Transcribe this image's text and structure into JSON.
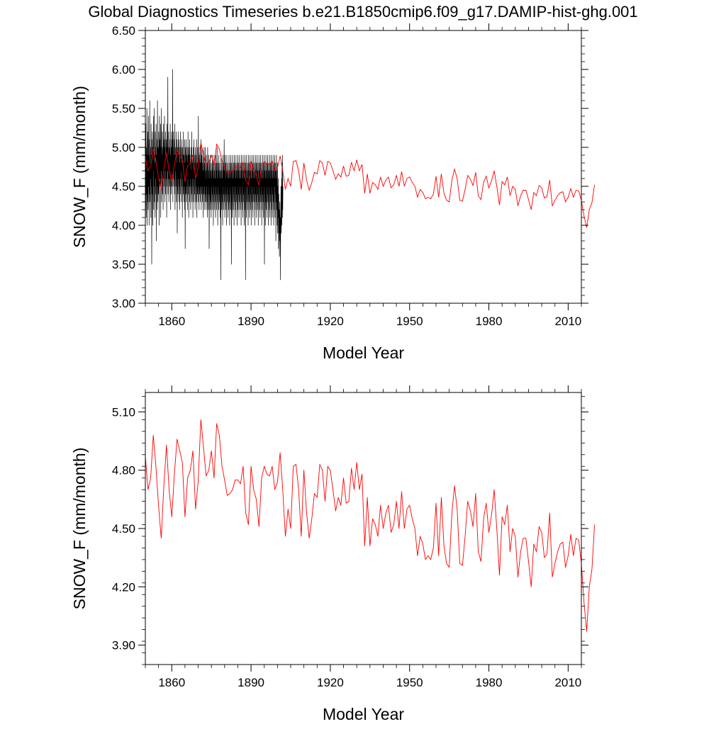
{
  "title": "Global Diagnostics Timeseries b.e21.B1850cmip6.f09_g17.DAMIP-hist-ghg.001",
  "colors": {
    "monthly": "#000000",
    "annual": "#ff0000",
    "frame": "#000000"
  },
  "chart_data": [
    {
      "type": "line",
      "xlabel": "Model Year",
      "ylabel": "SNOW_F (mm/month)",
      "xlim": [
        1850,
        2015
      ],
      "ylim": [
        3.0,
        6.5
      ],
      "xticks": [
        1860,
        1890,
        1920,
        1950,
        1980,
        2010
      ],
      "xtick_labels": [
        "1860",
        "1890",
        "1920",
        "1950",
        "1980",
        "2010"
      ],
      "yticks": [
        3.0,
        3.5,
        4.0,
        4.5,
        5.0,
        5.5,
        6.0,
        6.5
      ],
      "ytick_labels": [
        "3.00",
        "3.50",
        "4.00",
        "4.50",
        "5.00",
        "5.50",
        "6.00",
        "6.50"
      ],
      "grid": false,
      "series": [
        {
          "color": "#000000",
          "x_start": 1850.0,
          "x_step": 0.0833,
          "note_style": "monthly",
          "values": [
            4.6,
            4.2,
            5.3,
            4.8,
            4.1,
            5.0,
            4.4,
            5.5,
            4.0,
            4.9,
            4.3,
            5.2,
            4.7,
            4.2,
            5.4,
            4.5,
            4.9,
            4.0,
            5.1,
            4.4,
            5.6,
            4.3,
            4.8,
            4.6,
            5.0,
            4.1,
            5.3,
            4.5,
            4.9,
            3.5,
            5.1,
            4.4,
            5.2,
            4.6,
            4.0,
            5.0,
            4.7,
            5.4,
            4.2,
            4.9,
            4.5,
            5.5,
            4.3,
            4.8,
            4.1,
            5.2,
            4.6,
            5.0,
            4.4,
            5.3,
            3.8,
            4.9,
            4.5,
            5.1,
            4.2,
            5.6,
            4.7,
            4.3,
            5.0,
            4.8,
            4.4,
            5.2,
            4.9,
            4.0,
            5.4,
            4.6,
            5.1,
            4.5,
            4.9,
            5.3,
            4.1,
            5.0,
            4.7,
            5.5,
            4.3,
            4.9,
            4.6,
            5.2,
            4.4,
            5.0,
            4.8,
            4.2,
            5.3,
            4.6,
            5.1,
            4.9,
            4.5,
            5.4,
            4.3,
            5.0,
            4.7,
            5.2,
            4.4,
            4.9,
            4.6,
            5.1,
            4.8,
            4.1,
            5.3,
            4.5,
            5.0,
            4.7,
            5.9,
            4.4,
            4.9,
            4.6,
            5.2,
            4.3,
            5.0,
            4.8,
            4.5,
            5.1,
            4.6,
            5.3,
            4.2,
            4.9,
            4.7,
            5.0,
            4.4,
            5.2,
            4.8,
            4.5,
            5.1,
            4.6,
            6.0,
            4.3,
            5.0,
            4.7,
            5.2,
            4.5,
            4.9,
            4.6,
            5.1,
            4.4,
            5.3,
            4.2,
            4.9,
            4.7,
            5.0,
            4.5,
            5.2,
            4.3,
            4.8,
            4.6,
            5.1,
            3.9,
            5.0,
            4.7,
            4.4,
            5.2,
            4.6,
            4.9,
            4.3,
            5.1,
            4.5,
            5.0,
            4.2,
            4.8,
            4.6,
            5.2,
            4.4,
            4.9,
            4.7,
            5.0,
            4.3,
            5.1,
            4.5,
            4.8,
            4.1,
            5.0,
            4.6,
            4.9,
            4.4,
            5.2,
            4.7,
            4.3,
            4.9,
            4.5,
            5.1,
            4.2,
            4.8,
            3.7,
            5.0,
            4.6,
            4.4,
            5.1,
            4.7,
            4.3,
            4.9,
            4.5,
            5.0,
            4.2,
            4.8,
            4.6,
            5.2,
            4.4,
            4.9,
            4.1,
            5.0,
            4.7,
            4.5,
            5.1,
            4.3,
            4.9,
            4.6,
            4.8,
            4.2,
            5.0,
            4.5,
            4.7,
            4.4,
            5.2,
            4.3,
            4.9,
            4.6,
            4.8,
            4.1,
            5.0,
            4.5,
            4.7,
            4.3,
            5.1,
            4.6,
            4.9,
            4.4,
            4.8,
            4.2,
            5.0,
            4.6,
            4.7,
            4.3,
            4.9,
            4.5,
            5.1,
            4.1,
            4.8,
            4.6,
            4.4,
            5.0,
            4.7,
            4.3,
            5.4,
            4.5,
            4.8,
            4.2,
            4.9,
            4.6,
            4.4,
            5.0,
            4.7,
            4.3,
            4.8,
            4.5,
            5.1,
            4.2,
            4.9,
            4.6,
            4.4,
            5.0,
            4.3,
            4.8,
            4.5,
            4.7,
            4.1,
            4.9,
            4.6,
            4.4,
            5.0,
            4.2,
            4.8,
            4.5,
            4.7,
            4.3,
            5.0,
            4.4,
            4.6,
            4.2,
            4.9,
            4.5,
            4.7,
            4.3,
            4.8,
            4.1,
            5.0,
            4.4,
            4.6,
            4.2,
            4.9,
            4.5,
            4.7,
            3.7,
            4.8,
            4.4,
            4.6,
            4.2,
            4.9,
            4.5,
            4.3,
            4.7,
            4.1,
            4.8,
            4.5,
            4.6,
            4.2,
            4.9,
            4.4,
            4.7,
            4.3,
            4.8,
            4.0,
            4.6,
            4.5,
            4.9,
            4.2,
            4.7,
            4.4,
            4.8,
            4.3,
            4.6,
            4.1,
            4.9,
            4.5,
            4.7,
            4.2,
            4.8,
            4.4,
            5.0,
            4.3,
            4.6,
            4.0,
            4.8,
            4.5,
            4.7,
            4.2,
            4.9,
            4.4,
            4.6,
            4.3,
            4.8,
            4.1,
            4.7,
            4.5,
            4.6,
            3.3,
            4.9,
            4.4,
            4.7,
            4.2,
            4.8,
            4.3,
            4.6,
            4.0,
            4.9,
            4.5,
            4.7,
            4.2,
            4.8,
            4.4,
            5.1,
            4.3,
            4.7,
            4.1,
            4.9,
            4.5,
            4.6,
            4.2,
            4.8,
            4.4,
            4.7,
            4.0,
            4.9,
            4.3,
            4.6,
            4.5,
            4.8,
            4.1,
            4.7,
            4.4,
            4.6,
            4.2,
            4.9,
            4.3,
            4.7,
            4.0,
            4.8,
            4.5,
            4.6,
            4.2,
            4.9,
            4.4,
            4.7,
            3.5,
            4.8,
            4.3,
            4.6,
            4.1,
            4.9,
            4.5,
            4.7,
            4.2,
            4.8,
            4.4,
            4.6,
            4.0,
            4.9,
            4.3,
            4.7,
            4.5,
            4.8,
            4.2,
            4.6,
            4.1,
            4.9,
            4.4,
            4.7,
            4.3,
            4.8,
            4.0,
            4.6,
            4.5,
            4.9,
            4.2,
            4.7,
            4.4,
            4.8,
            4.1,
            4.6,
            4.3,
            4.9,
            4.5,
            4.7,
            4.2,
            4.8,
            4.4,
            4.6,
            4.0,
            4.9,
            4.3,
            4.7,
            4.5,
            4.8,
            4.2,
            4.6,
            4.1,
            4.9,
            4.4,
            4.7,
            4.3,
            4.8,
            4.0,
            4.6,
            4.5,
            4.9,
            4.2,
            4.7,
            3.3,
            4.8,
            4.4,
            4.6,
            4.1,
            4.9,
            4.3,
            4.7,
            4.5,
            4.8,
            4.2,
            4.6,
            4.0,
            4.9,
            4.4,
            4.7,
            4.3,
            4.8,
            4.1,
            4.6,
            4.5,
            4.9,
            4.2,
            4.7,
            4.4,
            4.8,
            4.0,
            4.6,
            4.3,
            4.9,
            4.5,
            4.7,
            4.2,
            4.8,
            4.1,
            4.6,
            4.4,
            4.9,
            4.3,
            4.7,
            4.5,
            4.8,
            4.0,
            4.6,
            4.2,
            4.9,
            4.4,
            4.7,
            4.3,
            4.8,
            4.1,
            4.6,
            4.5,
            4.9,
            4.2,
            4.7,
            4.4,
            4.8,
            4.0,
            4.6,
            4.3,
            4.9,
            4.5,
            4.7,
            4.2,
            4.8,
            4.1,
            4.6,
            4.4,
            4.9,
            4.3,
            4.7,
            4.5,
            4.8,
            4.0,
            4.6,
            4.2,
            4.9,
            4.4,
            4.7,
            4.3,
            4.8,
            4.1,
            4.6,
            4.5,
            4.9,
            3.5,
            4.7,
            4.4,
            4.8,
            4.0,
            4.6,
            4.3,
            4.9,
            4.2,
            4.7,
            4.5,
            4.8,
            4.1,
            4.6,
            4.4,
            4.9,
            4.3,
            4.7,
            4.0,
            4.8,
            4.2,
            4.6,
            4.5,
            4.9,
            4.1,
            4.7,
            4.4,
            4.8,
            4.3,
            4.6,
            4.0,
            4.9,
            4.2,
            4.7,
            4.5,
            4.8,
            4.1,
            4.6,
            4.4,
            4.9,
            4.3,
            4.7,
            4.0,
            4.8,
            4.2,
            4.6,
            4.5,
            4.9,
            4.1,
            4.7,
            4.4,
            4.8,
            3.8,
            4.6,
            4.3,
            4.9,
            4.2,
            4.7,
            4.0,
            4.8,
            3.9,
            4.5,
            4.1,
            4.6,
            3.7,
            4.4,
            3.9,
            4.2,
            3.6,
            4.0,
            4.3,
            3.8,
            4.1,
            3.3,
            4.0,
            4.5,
            3.9,
            4.2,
            4.6,
            4.0,
            4.8,
            4.2,
            4.9,
            4.1,
            4.5
          ]
        }
      ]
    },
    {
      "type": "line",
      "xlabel": "Model Year",
      "ylabel": "SNOW_F (mm/month)",
      "xlim": [
        1850,
        2015
      ],
      "ylim": [
        3.8,
        5.2
      ],
      "xticks": [
        1860,
        1890,
        1920,
        1950,
        1980,
        2010
      ],
      "xtick_labels": [
        "1860",
        "1890",
        "1920",
        "1950",
        "1980",
        "2010"
      ],
      "yticks": [
        3.9,
        4.2,
        4.5,
        4.8,
        5.1
      ],
      "ytick_labels": [
        "3.90",
        "4.20",
        "4.50",
        "4.80",
        "5.10"
      ],
      "grid": false,
      "series": [
        {
          "color": "#ff0000",
          "x_start": 1850,
          "x_step": 1,
          "values": [
            4.87,
            4.7,
            4.76,
            4.98,
            4.82,
            4.62,
            4.45,
            4.72,
            4.93,
            4.7,
            4.56,
            4.78,
            4.96,
            4.9,
            4.84,
            4.56,
            4.76,
            4.8,
            4.9,
            4.6,
            4.74,
            5.06,
            4.92,
            4.77,
            4.8,
            4.9,
            4.76,
            5.04,
            4.98,
            4.82,
            4.75,
            4.67,
            4.68,
            4.7,
            4.75,
            4.75,
            4.73,
            4.82,
            4.58,
            4.52,
            4.82,
            4.7,
            4.65,
            4.51,
            4.76,
            4.82,
            4.78,
            4.77,
            4.82,
            4.7,
            4.74,
            4.89,
            4.7,
            4.46,
            4.6,
            4.5,
            4.82,
            4.83,
            4.7,
            4.46,
            4.8,
            4.58,
            4.45,
            4.55,
            4.68,
            4.66,
            4.83,
            4.8,
            4.64,
            4.82,
            4.8,
            4.7,
            4.59,
            4.66,
            4.62,
            4.76,
            4.63,
            4.64,
            4.81,
            4.7,
            4.84,
            4.7,
            4.78,
            4.41,
            4.66,
            4.41,
            4.55,
            4.52,
            4.46,
            4.62,
            4.5,
            4.58,
            4.62,
            4.48,
            4.52,
            4.64,
            4.5,
            4.69,
            4.5,
            4.6,
            4.62,
            4.55,
            4.5,
            4.36,
            4.46,
            4.42,
            4.34,
            4.36,
            4.34,
            4.4,
            4.63,
            4.36,
            4.66,
            4.41,
            4.32,
            4.3,
            4.58,
            4.72,
            4.6,
            4.32,
            4.31,
            4.46,
            4.64,
            4.59,
            4.51,
            4.68,
            4.38,
            4.33,
            4.55,
            4.63,
            4.48,
            4.57,
            4.7,
            4.5,
            4.26,
            4.56,
            4.52,
            4.62,
            4.38,
            4.5,
            4.46,
            4.25,
            4.38,
            4.45,
            4.45,
            4.33,
            4.2,
            4.42,
            4.38,
            4.51,
            4.48,
            4.35,
            4.37,
            4.58,
            4.25,
            4.32,
            4.38,
            4.42,
            4.43,
            4.3,
            4.36,
            4.47,
            4.36,
            4.45,
            4.44,
            4.32,
            4.12,
            3.97,
            4.2,
            4.29,
            4.52
          ]
        }
      ]
    }
  ]
}
